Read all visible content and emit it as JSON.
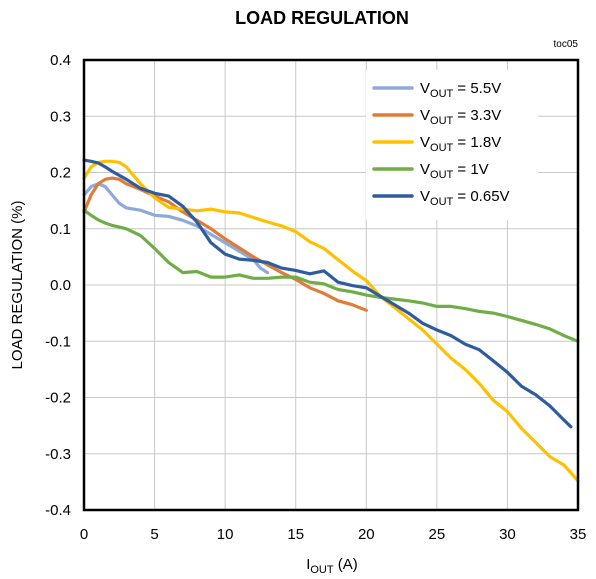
{
  "chart_data": {
    "type": "line",
    "title": "LOAD REGULATION",
    "figure_tag": "toc05",
    "xlabel": {
      "main": "I",
      "sub": "OUT",
      "suffix": " (A)"
    },
    "ylabel": "LOAD REGULATION (%)",
    "xlim": [
      0,
      35
    ],
    "ylim": [
      -0.4,
      0.4
    ],
    "xticks": [
      0,
      5,
      10,
      15,
      20,
      25,
      30,
      35
    ],
    "yticks": [
      0.4,
      0.3,
      0.2,
      0.1,
      0.0,
      -0.1,
      -0.2,
      -0.3,
      -0.4
    ],
    "xtick_labels": [
      "0",
      "5",
      "10",
      "15",
      "20",
      "25",
      "30",
      "35"
    ],
    "ytick_labels": [
      "0.4",
      "0.3",
      "0.2",
      "0.1",
      "0.0",
      "-0.1",
      "-0.2",
      "-0.3",
      "-0.4"
    ],
    "grid": true,
    "legend_position": "top-right",
    "series": [
      {
        "name": "VOUT = 5.5V",
        "legend": {
          "main": "V",
          "sub": "OUT",
          "suffix": " = 5.5V"
        },
        "color": "#8EA9DB",
        "x": [
          0,
          0.5,
          1,
          1.5,
          2,
          2.5,
          3,
          3.5,
          4,
          5,
          6,
          7,
          8,
          9,
          10,
          11,
          12,
          12.5,
          13
        ],
        "y": [
          0.16,
          0.175,
          0.18,
          0.175,
          0.16,
          0.145,
          0.137,
          0.135,
          0.133,
          0.124,
          0.122,
          0.115,
          0.105,
          0.09,
          0.075,
          0.06,
          0.045,
          0.03,
          0.022
        ]
      },
      {
        "name": "VOUT = 3.3V",
        "legend": {
          "main": "V",
          "sub": "OUT",
          "suffix": " = 3.3V"
        },
        "color": "#E07B39",
        "x": [
          0,
          0.5,
          1,
          1.5,
          2,
          2.5,
          3,
          4,
          5,
          6,
          7,
          8,
          9,
          10,
          11,
          12,
          13,
          14,
          15,
          16,
          17,
          18,
          19,
          20
        ],
        "y": [
          0.13,
          0.16,
          0.18,
          0.188,
          0.19,
          0.188,
          0.18,
          0.17,
          0.158,
          0.148,
          0.13,
          0.115,
          0.1,
          0.082,
          0.066,
          0.05,
          0.036,
          0.022,
          0.01,
          -0.005,
          -0.015,
          -0.028,
          -0.035,
          -0.045
        ]
      },
      {
        "name": "VOUT = 1.8V",
        "legend": {
          "main": "V",
          "sub": "OUT",
          "suffix": " = 1.8V"
        },
        "color": "#FFC000",
        "x": [
          0,
          0.5,
          1,
          1.5,
          2,
          2.5,
          3,
          4,
          5,
          6,
          7,
          8,
          9,
          10,
          11,
          12,
          13,
          14,
          15,
          16,
          17,
          18,
          19,
          20,
          21,
          22,
          23,
          24,
          25,
          26,
          27,
          28,
          29,
          30,
          31,
          32,
          33,
          34,
          35
        ],
        "y": [
          0.19,
          0.21,
          0.218,
          0.22,
          0.22,
          0.218,
          0.21,
          0.18,
          0.155,
          0.138,
          0.135,
          0.132,
          0.135,
          0.13,
          0.128,
          0.12,
          0.112,
          0.105,
          0.095,
          0.077,
          0.065,
          0.045,
          0.025,
          0.008,
          -0.02,
          -0.04,
          -0.06,
          -0.08,
          -0.105,
          -0.13,
          -0.15,
          -0.175,
          -0.205,
          -0.225,
          -0.255,
          -0.28,
          -0.305,
          -0.32,
          -0.348
        ]
      },
      {
        "name": "VOUT = 1V",
        "legend": {
          "main": "V",
          "sub": "OUT",
          "suffix": " = 1V"
        },
        "color": "#70AD47",
        "x": [
          0,
          0.5,
          1,
          1.5,
          2,
          2.5,
          3,
          4,
          5,
          6,
          7,
          8,
          9,
          10,
          11,
          12,
          13,
          14,
          15,
          16,
          17,
          18,
          19,
          20,
          21,
          22,
          23,
          24,
          25,
          26,
          27,
          28,
          29,
          30,
          31,
          32,
          33,
          34,
          35
        ],
        "y": [
          0.133,
          0.124,
          0.116,
          0.11,
          0.106,
          0.103,
          0.1,
          0.088,
          0.065,
          0.04,
          0.022,
          0.024,
          0.014,
          0.014,
          0.018,
          0.012,
          0.012,
          0.014,
          0.014,
          0.005,
          0.002,
          -0.008,
          -0.012,
          -0.018,
          -0.022,
          -0.025,
          -0.028,
          -0.032,
          -0.038,
          -0.038,
          -0.042,
          -0.047,
          -0.05,
          -0.056,
          -0.063,
          -0.07,
          -0.078,
          -0.09,
          -0.1
        ]
      },
      {
        "name": "VOUT = 0.65V",
        "legend": {
          "main": "V",
          "sub": "OUT",
          "suffix": " = 0.65V"
        },
        "color": "#2E5C9E",
        "x": [
          0,
          0.5,
          1,
          1.5,
          2,
          3,
          4,
          5,
          6,
          7,
          8,
          9,
          10,
          11,
          12,
          13,
          14,
          15,
          16,
          17,
          18,
          19,
          20,
          21,
          22,
          23,
          24,
          25,
          26,
          27,
          28,
          29,
          30,
          31,
          32,
          33,
          34,
          34.5
        ],
        "y": [
          0.222,
          0.22,
          0.217,
          0.21,
          0.202,
          0.188,
          0.172,
          0.163,
          0.158,
          0.14,
          0.112,
          0.075,
          0.055,
          0.046,
          0.044,
          0.04,
          0.03,
          0.026,
          0.02,
          0.025,
          0.005,
          -0.001,
          -0.005,
          -0.02,
          -0.035,
          -0.05,
          -0.068,
          -0.08,
          -0.09,
          -0.105,
          -0.115,
          -0.135,
          -0.155,
          -0.18,
          -0.195,
          -0.215,
          -0.24,
          -0.252
        ]
      }
    ]
  }
}
